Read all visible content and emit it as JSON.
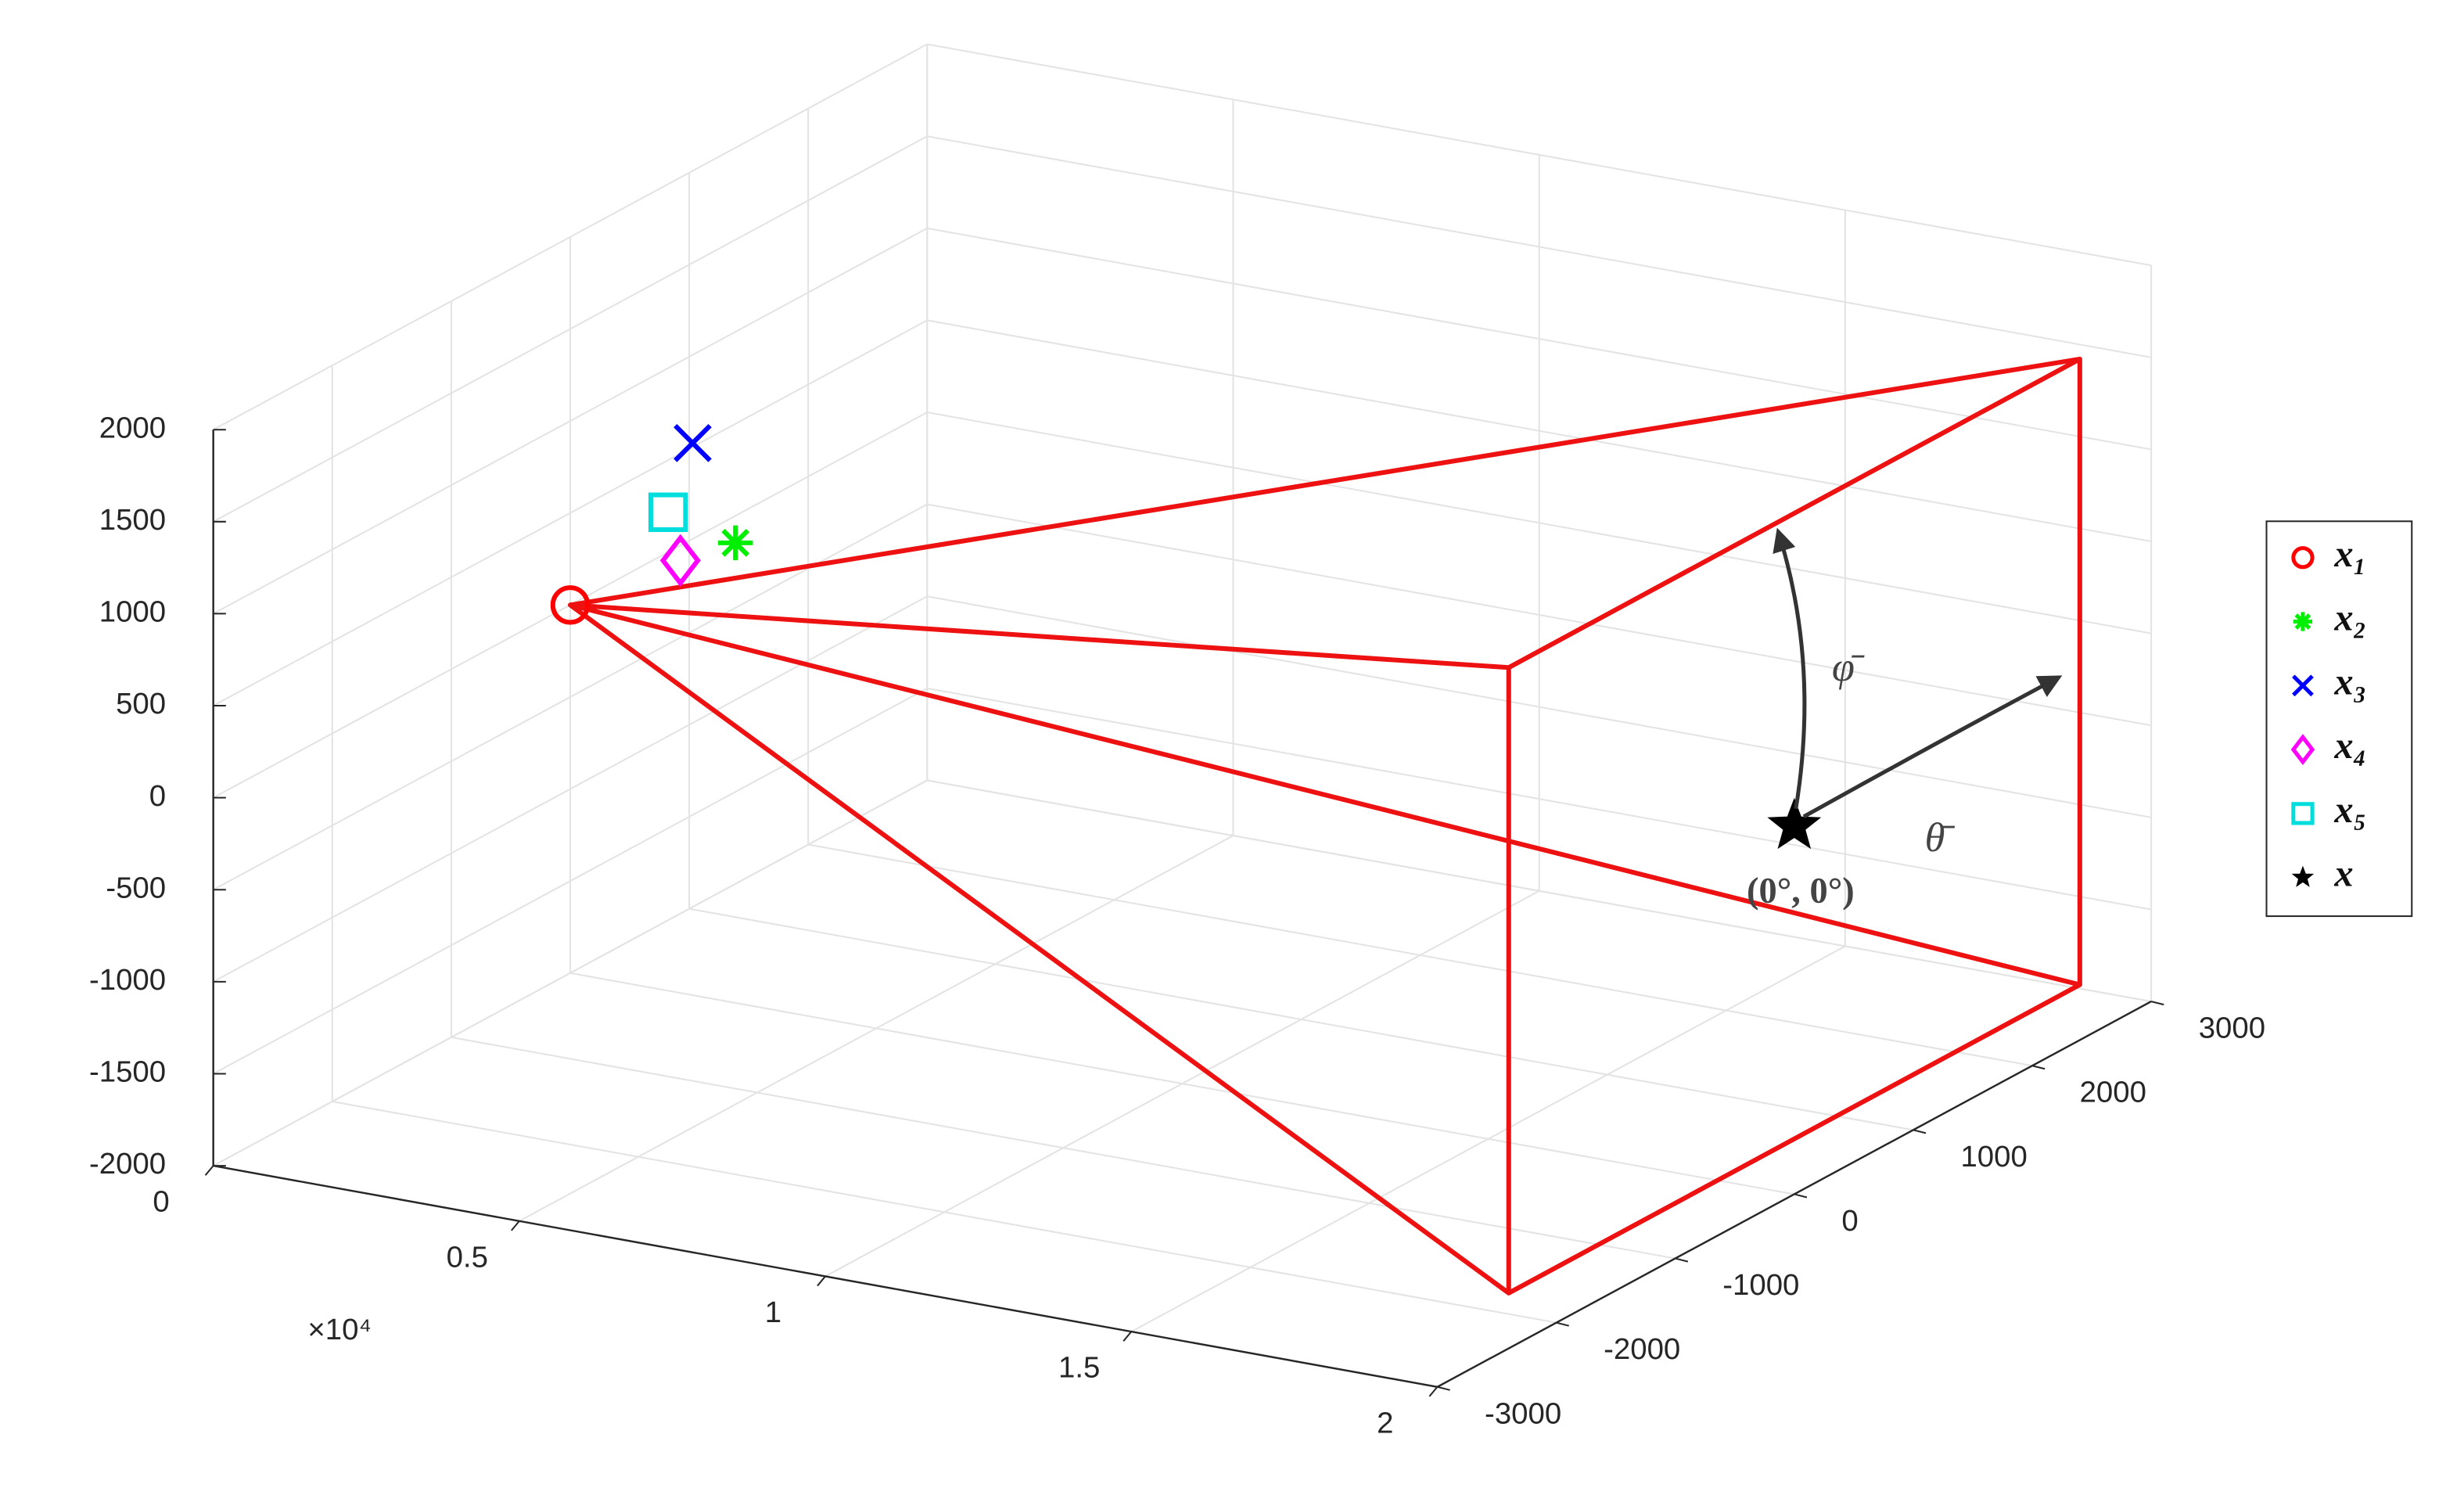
{
  "chart_data": {
    "type": "scatter3d",
    "xlim": [
      0,
      20000
    ],
    "ylim": [
      -3000,
      3000
    ],
    "zlim": [
      -2000,
      2000
    ],
    "xticks": [
      {
        "value": 0,
        "label": "0"
      },
      {
        "value": 5000,
        "label": "0.5"
      },
      {
        "value": 10000,
        "label": "1"
      },
      {
        "value": 15000,
        "label": "1.5"
      },
      {
        "value": 20000,
        "label": "2"
      }
    ],
    "x_multiplier": "×10⁴",
    "yticks": [
      -3000,
      -2000,
      -1000,
      0,
      1000,
      2000,
      3000
    ],
    "zticks": [
      -2000,
      -1500,
      -1000,
      -500,
      0,
      500,
      1000,
      1500,
      2000
    ],
    "grid": true,
    "frame": {
      "color": "#ee1111",
      "x": [
        0,
        20000,
        20000,
        0,
        20000,
        20000,
        0,
        null,
        20000,
        20000,
        null,
        20000,
        20000
      ],
      "y": [
        0,
        -2400,
        -2400,
        0,
        2400,
        2400,
        0,
        null,
        -2400,
        2400,
        null,
        -2400,
        2400
      ],
      "z": [
        0,
        1700,
        -1700,
        0,
        -1700,
        1700,
        0,
        null,
        1700,
        1700,
        null,
        -1700,
        -1700
      ]
    },
    "series": [
      {
        "name": "x₁",
        "color": "#ff0000",
        "marker": "circle",
        "x": [
          0
        ],
        "y": [
          0
        ],
        "z": [
          0
        ]
      },
      {
        "name": "x₂",
        "color": "#00ee00",
        "marker": "asterisk",
        "x": [
          2700
        ],
        "y": [
          0
        ],
        "z": [
          500
        ]
      },
      {
        "name": "x₃",
        "color": "#0000ff",
        "marker": "cross",
        "x": [
          2000
        ],
        "y": [
          0
        ],
        "z": [
          1000
        ]
      },
      {
        "name": "x₄",
        "color": "#ff00ff",
        "marker": "diamond",
        "x": [
          1800
        ],
        "y": [
          0
        ],
        "z": [
          350
        ]
      },
      {
        "name": "x₅",
        "color": "#00dddd",
        "marker": "square",
        "x": [
          1600
        ],
        "y": [
          0
        ],
        "z": [
          600
        ]
      },
      {
        "name": "x",
        "color": "#000000",
        "marker": "star",
        "x": [
          20000
        ],
        "y": [
          0
        ],
        "z": [
          0
        ]
      }
    ],
    "annotations": [
      "(0°, 0°)",
      "φ̄",
      "θ̄"
    ]
  }
}
